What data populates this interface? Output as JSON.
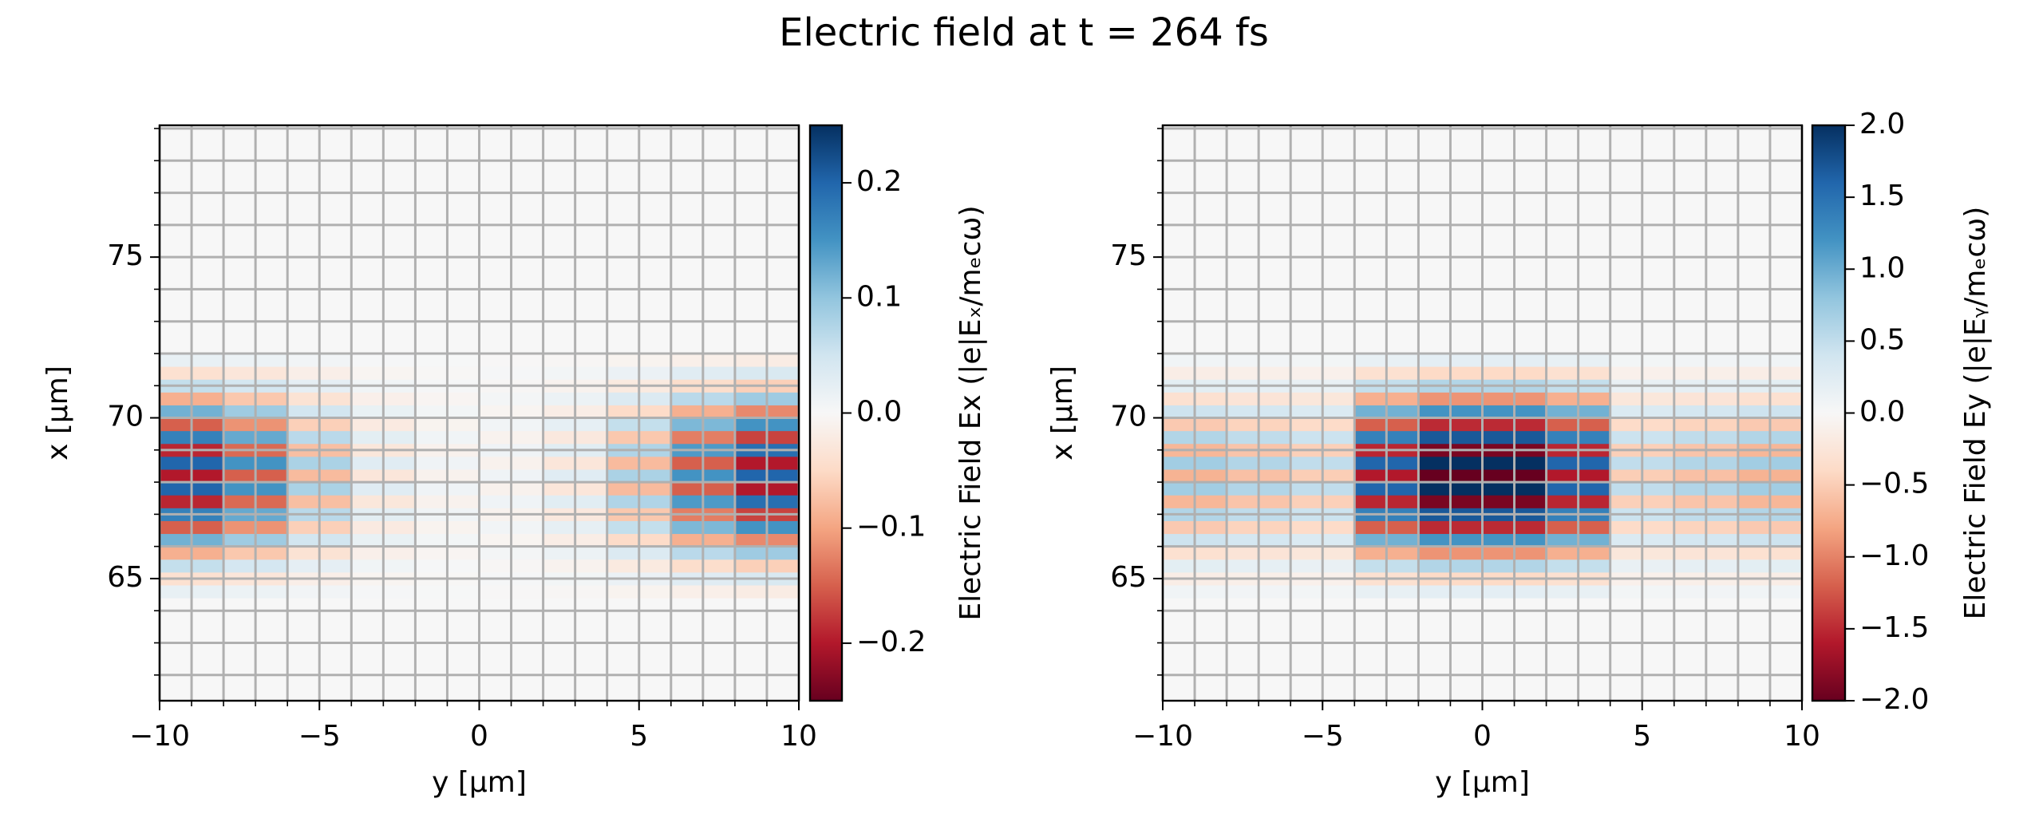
{
  "title": "Electric field at t = 264 fs",
  "chart_data": [
    {
      "type": "heatmap",
      "colormap": "RdBu_r",
      "grid": true,
      "xlabel": "y [µm]",
      "ylabel": "x [µm]",
      "xlim": [
        -10,
        10
      ],
      "xticks": [
        {
          "value": -10,
          "label": "−10"
        },
        {
          "value": -5,
          "label": "−5"
        },
        0,
        5,
        10
      ],
      "ylim": [
        61.2,
        79.1
      ],
      "yticks": [
        65,
        70,
        75
      ],
      "xgrid": [
        -10,
        -9,
        -8,
        -7,
        -6,
        -5,
        -4,
        -3,
        -2,
        -1,
        0,
        1,
        2,
        3,
        4,
        5,
        6,
        7,
        8,
        9,
        10
      ],
      "ygrid": [
        62,
        63,
        64,
        65,
        66,
        67,
        68,
        69,
        70,
        71,
        72,
        73,
        74,
        75,
        76,
        77,
        78,
        79
      ],
      "x": [
        -9,
        -7,
        -5,
        -3,
        -1,
        1,
        3,
        5,
        7,
        9
      ],
      "y": [
        64.6,
        65.0,
        65.4,
        65.8,
        66.2,
        66.6,
        67.0,
        67.4,
        67.8,
        68.2,
        68.6,
        69.0,
        69.4,
        69.8,
        70.2,
        70.6,
        71.0,
        71.4,
        71.8
      ],
      "values": [
        [
          0.02,
          0.015,
          0.008,
          0.003,
          0.001,
          -0.001,
          -0.003,
          -0.008,
          -0.015,
          -0.02
        ],
        [
          -0.04,
          -0.03,
          -0.016,
          -0.006,
          -0.002,
          0.002,
          0.006,
          0.016,
          0.03,
          0.04
        ],
        [
          0.06,
          0.045,
          0.024,
          0.009,
          0.003,
          -0.003,
          -0.009,
          -0.024,
          -0.045,
          -0.06
        ],
        [
          -0.09,
          -0.068,
          -0.036,
          -0.014,
          -0.005,
          0.005,
          0.014,
          0.036,
          0.068,
          0.09
        ],
        [
          0.12,
          0.09,
          0.048,
          0.018,
          0.006,
          -0.006,
          -0.018,
          -0.048,
          -0.09,
          -0.12
        ],
        [
          -0.15,
          -0.113,
          -0.06,
          -0.023,
          -0.008,
          0.008,
          0.023,
          0.06,
          0.113,
          0.15
        ],
        [
          0.17,
          0.128,
          0.068,
          0.026,
          0.009,
          -0.009,
          -0.026,
          -0.068,
          -0.128,
          -0.17
        ],
        [
          -0.19,
          -0.143,
          -0.076,
          -0.029,
          -0.01,
          0.01,
          0.029,
          0.076,
          0.143,
          0.19
        ],
        [
          0.2,
          0.15,
          0.08,
          0.03,
          0.01,
          -0.01,
          -0.03,
          -0.08,
          -0.15,
          -0.2
        ],
        [
          -0.2,
          -0.15,
          -0.08,
          -0.03,
          -0.01,
          0.01,
          0.03,
          0.08,
          0.15,
          0.2
        ],
        [
          0.2,
          0.15,
          0.08,
          0.03,
          0.01,
          -0.01,
          -0.03,
          -0.08,
          -0.15,
          -0.2
        ],
        [
          -0.19,
          -0.143,
          -0.076,
          -0.029,
          -0.01,
          0.01,
          0.029,
          0.076,
          0.143,
          0.19
        ],
        [
          0.17,
          0.128,
          0.068,
          0.026,
          0.009,
          -0.009,
          -0.026,
          -0.068,
          -0.128,
          -0.17
        ],
        [
          -0.15,
          -0.113,
          -0.06,
          -0.023,
          -0.008,
          0.008,
          0.023,
          0.06,
          0.113,
          0.15
        ],
        [
          0.12,
          0.09,
          0.048,
          0.018,
          0.006,
          -0.006,
          -0.018,
          -0.048,
          -0.09,
          -0.12
        ],
        [
          -0.09,
          -0.068,
          -0.036,
          -0.014,
          -0.005,
          0.005,
          0.014,
          0.036,
          0.068,
          0.09
        ],
        [
          0.06,
          0.045,
          0.024,
          0.009,
          0.003,
          -0.003,
          -0.009,
          -0.024,
          -0.045,
          -0.06
        ],
        [
          -0.04,
          -0.03,
          -0.016,
          -0.006,
          -0.002,
          0.002,
          0.006,
          0.016,
          0.03,
          0.04
        ],
        [
          0.02,
          0.015,
          0.008,
          0.003,
          0.001,
          -0.001,
          -0.003,
          -0.008,
          -0.015,
          -0.02
        ]
      ],
      "colorbar": {
        "label": "Electric Field Ex (|e|Eₓ/mₑcω)",
        "lim": [
          -0.25,
          0.25
        ],
        "ticks": [
          {
            "value": -0.2,
            "label": "−0.2"
          },
          {
            "value": -0.1,
            "label": "−0.1"
          },
          {
            "value": 0,
            "label": "0.0"
          },
          0.1,
          0.2
        ]
      }
    },
    {
      "type": "heatmap",
      "colormap": "RdBu_r",
      "grid": true,
      "xlabel": "y [µm]",
      "ylabel": "x [µm]",
      "xlim": [
        -10,
        10
      ],
      "xticks": [
        {
          "value": -10,
          "label": "−10"
        },
        {
          "value": -5,
          "label": "−5"
        },
        0,
        5,
        10
      ],
      "ylim": [
        61.2,
        79.1
      ],
      "yticks": [
        65,
        70,
        75
      ],
      "xgrid": [
        -10,
        -9,
        -8,
        -7,
        -6,
        -5,
        -4,
        -3,
        -2,
        -1,
        0,
        1,
        2,
        3,
        4,
        5,
        6,
        7,
        8,
        9,
        10
      ],
      "ygrid": [
        62,
        63,
        64,
        65,
        66,
        67,
        68,
        69,
        70,
        71,
        72,
        73,
        74,
        75,
        76,
        77,
        78,
        79
      ],
      "x": [
        -9,
        -7,
        -5,
        -3,
        -1,
        1,
        3,
        5,
        7,
        9
      ],
      "y": [
        64.6,
        65.0,
        65.4,
        65.8,
        66.2,
        66.6,
        67.0,
        67.4,
        67.8,
        68.2,
        68.6,
        69.0,
        69.4,
        69.8,
        70.2,
        70.6,
        71.0,
        71.4,
        71.8
      ],
      "values": [
        [
          0.07,
          0.06,
          0.05,
          0.16,
          0.2,
          0.2,
          0.16,
          0.05,
          0.06,
          0.07
        ],
        [
          -0.14,
          -0.12,
          -0.1,
          -0.32,
          -0.4,
          -0.4,
          -0.32,
          -0.1,
          -0.12,
          -0.14
        ],
        [
          0.21,
          0.18,
          0.15,
          0.48,
          0.6,
          0.6,
          0.48,
          0.15,
          0.18,
          0.21
        ],
        [
          -0.32,
          -0.27,
          -0.23,
          -0.72,
          -0.9,
          -0.9,
          -0.72,
          -0.23,
          -0.27,
          -0.32
        ],
        [
          0.42,
          0.36,
          0.3,
          0.96,
          1.2,
          1.2,
          0.96,
          0.3,
          0.36,
          0.42
        ],
        [
          -0.53,
          -0.45,
          -0.38,
          -1.2,
          -1.5,
          -1.5,
          -1.2,
          -0.38,
          -0.45,
          -0.53
        ],
        [
          0.6,
          0.51,
          0.43,
          1.36,
          1.7,
          1.7,
          1.36,
          0.43,
          0.51,
          0.6
        ],
        [
          -0.67,
          -0.57,
          -0.48,
          -1.52,
          -1.9,
          -1.9,
          -1.52,
          -0.48,
          -0.57,
          -0.67
        ],
        [
          0.7,
          0.6,
          0.5,
          1.6,
          2.0,
          2.0,
          1.6,
          0.5,
          0.6,
          0.7
        ],
        [
          -0.7,
          -0.6,
          -0.5,
          -1.6,
          -2.0,
          -2.0,
          -1.6,
          -0.5,
          -0.6,
          -0.7
        ],
        [
          0.7,
          0.6,
          0.5,
          1.6,
          2.0,
          2.0,
          1.6,
          0.5,
          0.6,
          0.7
        ],
        [
          -0.67,
          -0.57,
          -0.48,
          -1.52,
          -1.9,
          -1.9,
          -1.52,
          -0.48,
          -0.57,
          -0.67
        ],
        [
          0.6,
          0.51,
          0.43,
          1.36,
          1.7,
          1.7,
          1.36,
          0.43,
          0.51,
          0.6
        ],
        [
          -0.53,
          -0.45,
          -0.38,
          -1.2,
          -1.5,
          -1.5,
          -1.2,
          -0.38,
          -0.45,
          -0.53
        ],
        [
          0.42,
          0.36,
          0.3,
          0.96,
          1.2,
          1.2,
          0.96,
          0.3,
          0.36,
          0.42
        ],
        [
          -0.32,
          -0.27,
          -0.23,
          -0.72,
          -0.9,
          -0.9,
          -0.72,
          -0.23,
          -0.27,
          -0.32
        ],
        [
          0.21,
          0.18,
          0.15,
          0.48,
          0.6,
          0.6,
          0.48,
          0.15,
          0.18,
          0.21
        ],
        [
          -0.14,
          -0.12,
          -0.1,
          -0.32,
          -0.4,
          -0.4,
          -0.32,
          -0.1,
          -0.12,
          -0.14
        ],
        [
          0.07,
          0.06,
          0.05,
          0.16,
          0.2,
          0.2,
          0.16,
          0.05,
          0.06,
          0.07
        ]
      ],
      "colorbar": {
        "label": "Electric Field Ey (|e|Eᵧ/mₑcω)",
        "lim": [
          -2,
          2
        ],
        "ticks": [
          {
            "value": -2,
            "label": "−2.0"
          },
          {
            "value": -1.5,
            "label": "−1.5"
          },
          {
            "value": -1,
            "label": "−1.0"
          },
          {
            "value": -0.5,
            "label": "−0.5"
          },
          {
            "value": 0,
            "label": "0.0"
          },
          0.5,
          {
            "value": 1,
            "label": "1.0"
          },
          1.5,
          {
            "value": 2,
            "label": "2.0"
          }
        ]
      }
    }
  ]
}
